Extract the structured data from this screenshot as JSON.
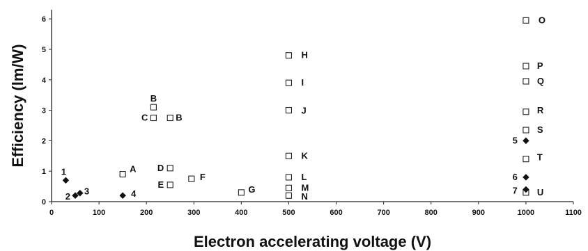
{
  "chart_data": {
    "type": "scatter",
    "title": "",
    "xlabel": "Electron accelerating voltage (V)",
    "ylabel": "Efficiency (lm/W)",
    "xlim": [
      0,
      1100
    ],
    "ylim": [
      0,
      6.3
    ],
    "xticks": [
      "0",
      "100",
      "200",
      "300",
      "400",
      "500",
      "600",
      "700",
      "800",
      "900",
      "1000",
      "1100"
    ],
    "yticks": [
      "0",
      "1",
      "2",
      "3",
      "4",
      "5",
      "6"
    ],
    "grid": false,
    "series": [
      {
        "marker": "open-square",
        "points": [
          {
            "label": "A",
            "x": 150,
            "y": 0.9
          },
          {
            "label": "B",
            "x": 215,
            "y": 3.1
          },
          {
            "label": "B",
            "x": 250,
            "y": 2.75
          },
          {
            "label": "C",
            "x": 215,
            "y": 2.75
          },
          {
            "label": "D",
            "x": 250,
            "y": 1.1
          },
          {
            "label": "E",
            "x": 250,
            "y": 0.55
          },
          {
            "label": "F",
            "x": 295,
            "y": 0.75
          },
          {
            "label": "G",
            "x": 400,
            "y": 0.3
          },
          {
            "label": "H",
            "x": 500,
            "y": 4.8
          },
          {
            "label": "I",
            "x": 500,
            "y": 3.9
          },
          {
            "label": "J",
            "x": 500,
            "y": 3.0
          },
          {
            "label": "K",
            "x": 500,
            "y": 1.5
          },
          {
            "label": "L",
            "x": 500,
            "y": 0.8
          },
          {
            "label": "M",
            "x": 500,
            "y": 0.45
          },
          {
            "label": "N",
            "x": 500,
            "y": 0.2
          },
          {
            "label": "O",
            "x": 1000,
            "y": 5.95
          },
          {
            "label": "P",
            "x": 1000,
            "y": 4.45
          },
          {
            "label": "Q",
            "x": 1000,
            "y": 3.95
          },
          {
            "label": "R",
            "x": 1000,
            "y": 2.95
          },
          {
            "label": "S",
            "x": 1000,
            "y": 2.35
          },
          {
            "label": "T",
            "x": 1000,
            "y": 1.4
          },
          {
            "label": "U",
            "x": 1000,
            "y": 0.3
          }
        ]
      },
      {
        "marker": "filled-diamond",
        "points": [
          {
            "label": "1",
            "x": 30,
            "y": 0.7
          },
          {
            "label": "2",
            "x": 50,
            "y": 0.2
          },
          {
            "label": "3",
            "x": 60,
            "y": 0.28
          },
          {
            "label": "4",
            "x": 150,
            "y": 0.2
          },
          {
            "label": "5",
            "x": 1000,
            "y": 2.0
          },
          {
            "label": "6",
            "x": 1000,
            "y": 0.8
          },
          {
            "label": "7",
            "x": 1000,
            "y": 0.4
          }
        ]
      }
    ]
  }
}
